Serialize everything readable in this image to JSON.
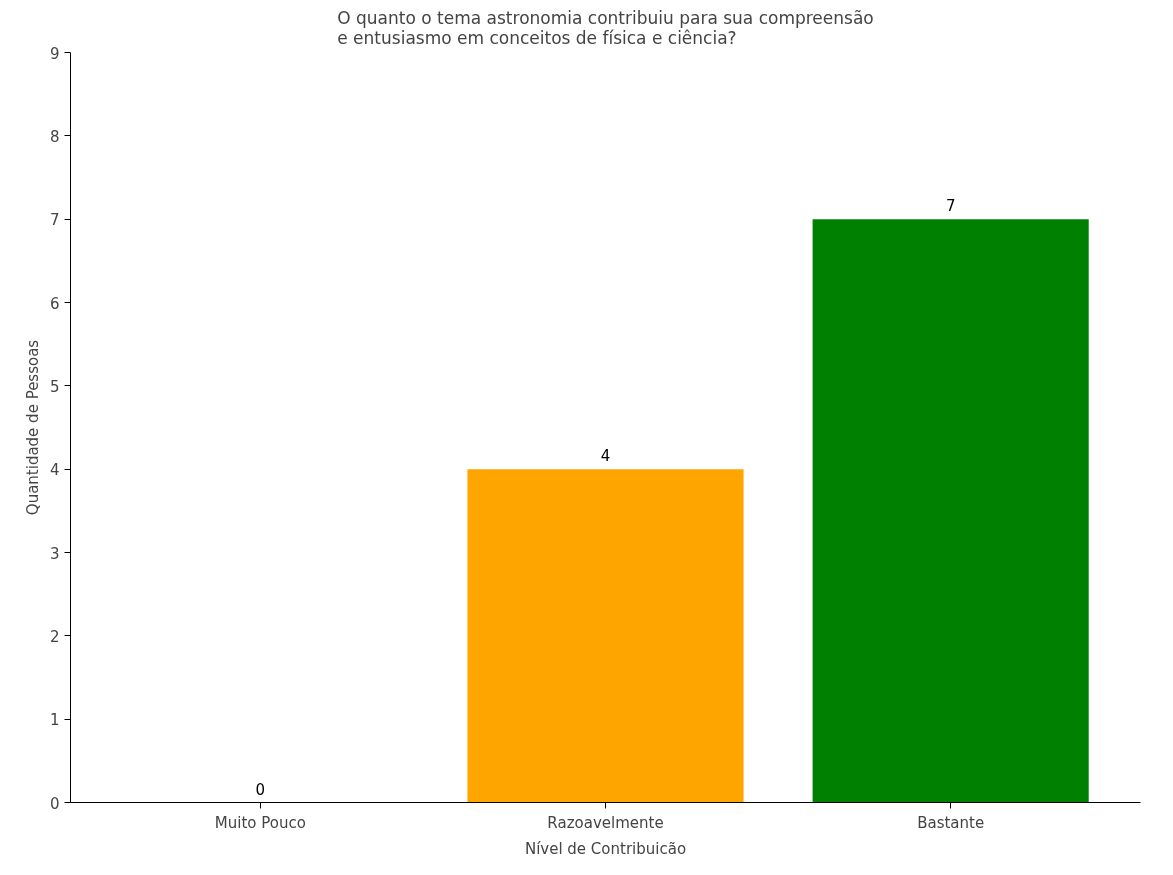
{
  "chart_data": {
    "type": "bar",
    "title": "O quanto o tema astronomia contribuiu para sua compreensão\ne entusiasmo em conceitos de física e ciência?",
    "xlabel": "Nível de Contribuicão",
    "ylabel": "Quantidade de Pessoas",
    "categories": [
      "Muito Pouco",
      "Razoavelmente",
      "Bastante"
    ],
    "values": [
      0,
      4,
      7
    ],
    "colors": [
      "#ff0000",
      "#ffa500",
      "#008000"
    ],
    "ylim": [
      0,
      9
    ],
    "yticks": [
      0,
      1,
      2,
      3,
      4,
      5,
      6,
      7,
      8,
      9
    ],
    "data_labels": true,
    "grid": false
  }
}
